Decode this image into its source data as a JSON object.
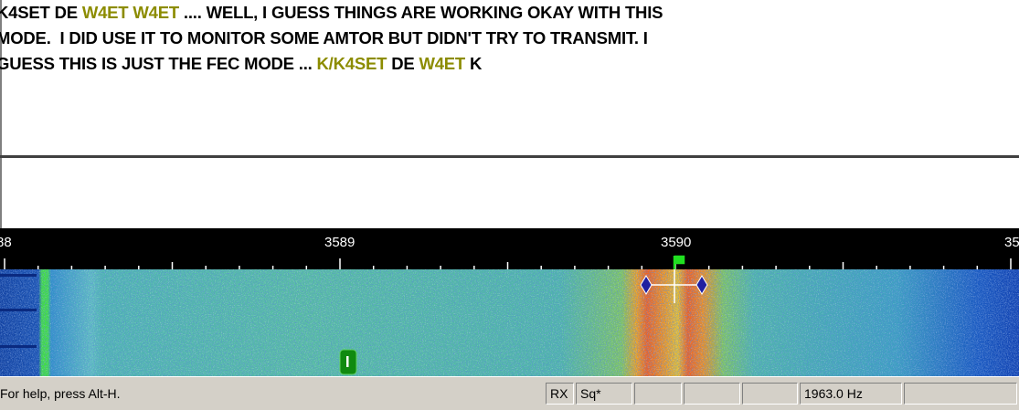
{
  "receive": {
    "highlight_color": "#8c8c00",
    "lines": [
      [
        {
          "text": "K4SET DE ",
          "highlight": false
        },
        {
          "text": "W4ET W4ET",
          "highlight": true
        },
        {
          "text": " .... WELL, I GUESS THINGS ARE WORKING OKAY WITH THIS",
          "highlight": false
        }
      ],
      [
        {
          "text": "MODE.  I DID USE IT TO MONITOR SOME AMTOR BUT DIDN'T TRY TO TRANSMIT. I",
          "highlight": false
        }
      ],
      [
        {
          "text": "GUESS THIS IS JUST THE FEC MODE ... ",
          "highlight": false
        },
        {
          "text": "K/K4SET",
          "highlight": true
        },
        {
          "text": " DE ",
          "highlight": false
        },
        {
          "text": "W4ET",
          "highlight": true
        },
        {
          "text": " K",
          "highlight": false
        }
      ]
    ]
  },
  "ruler": {
    "labels": [
      "88",
      "3589",
      "3590",
      "35"
    ]
  },
  "status": {
    "help": "For help, press Alt-H.",
    "rx": "RX",
    "squelch": "Sq*",
    "frequency": "1963.0 Hz"
  }
}
